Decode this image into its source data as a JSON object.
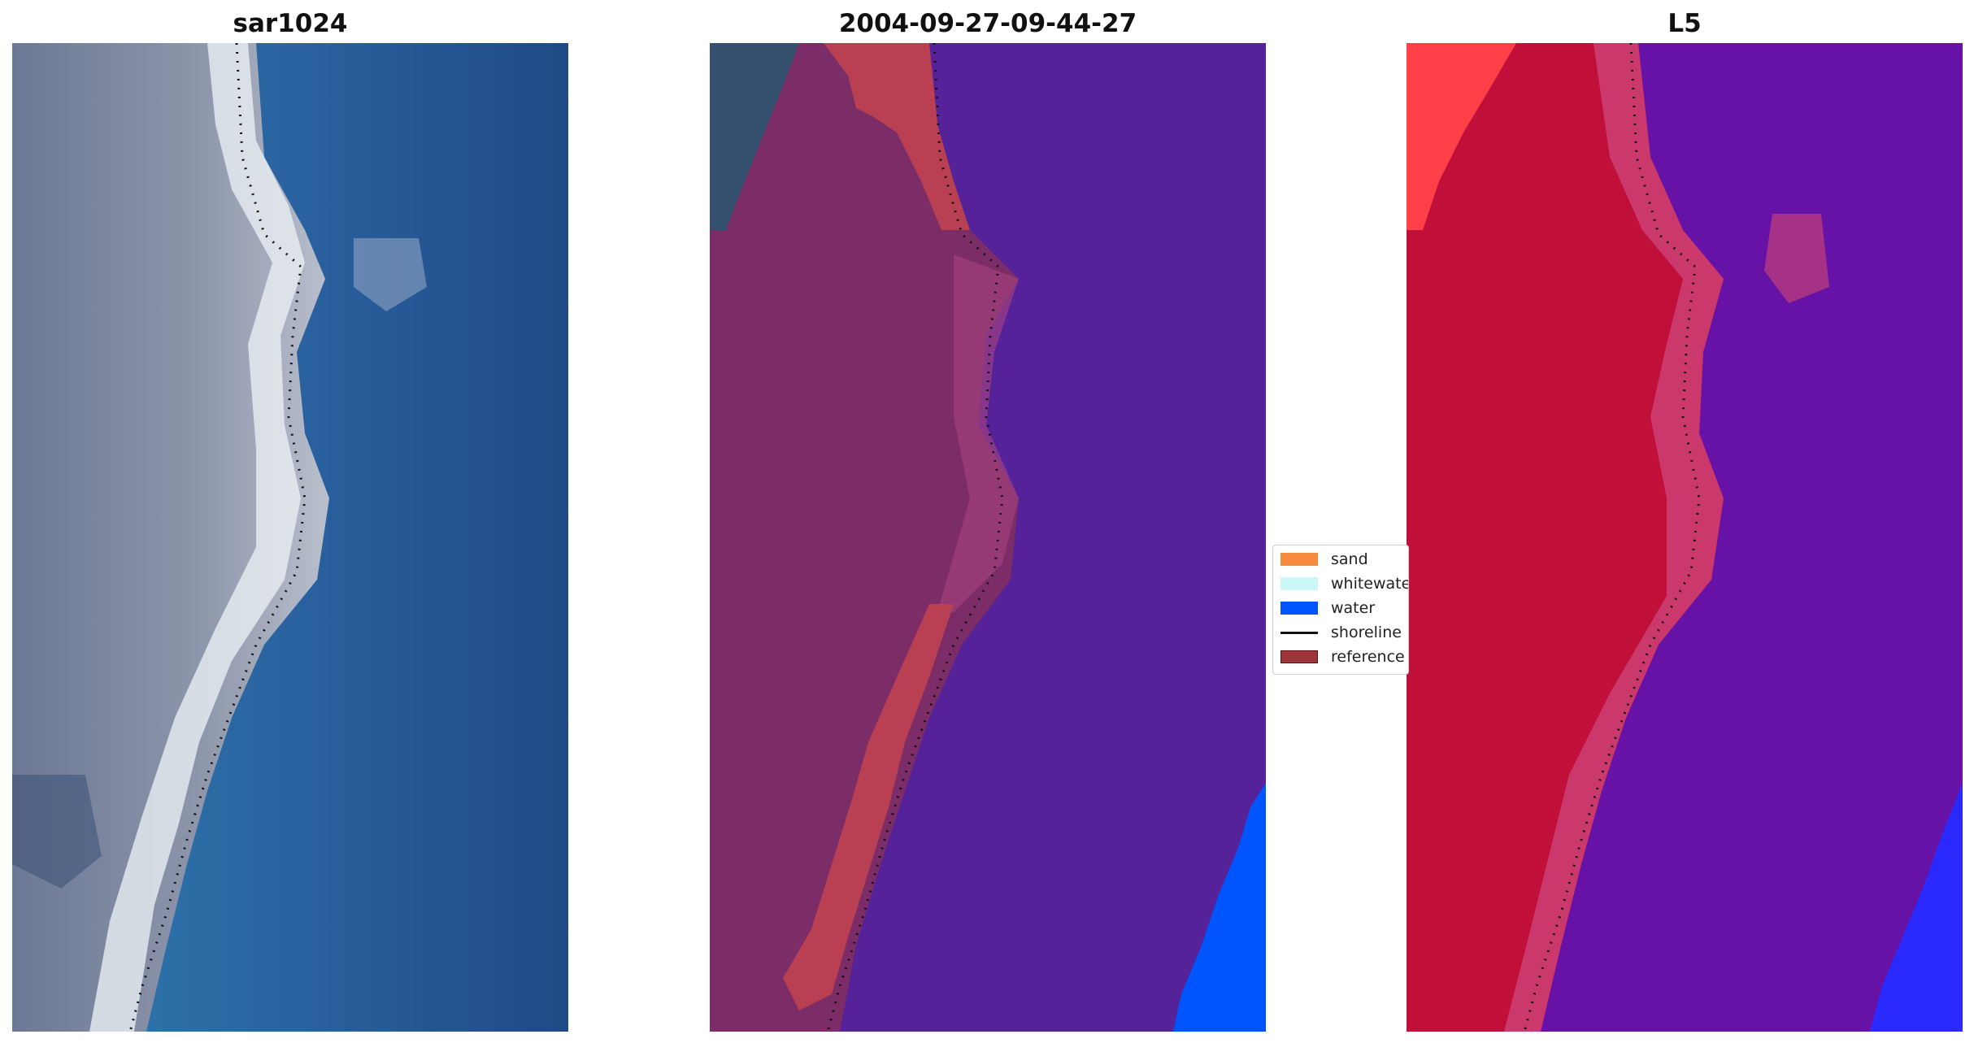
{
  "panels": [
    {
      "title": "sar1024",
      "kind": "rgb"
    },
    {
      "title": "2004-09-27-09-44-27",
      "kind": "classified"
    },
    {
      "title": "L5",
      "kind": "index"
    }
  ],
  "legend": {
    "items": [
      {
        "label": "sand",
        "color": "#f58a3c"
      },
      {
        "label": "whitewater",
        "color": "#ccf7f7"
      },
      {
        "label": "water",
        "color": "#0055ff"
      },
      {
        "label": "shoreline",
        "color": "#111111",
        "style": "line"
      },
      {
        "label": "reference",
        "color": "#a0363d"
      }
    ]
  },
  "colors": {
    "rgb_land": "#8a93a8",
    "rgb_sea": "#2a6aa0",
    "classified_land": "#7c2c66",
    "classified_water": "#55229a",
    "classified_reference": "#b93f52",
    "classified_blue": "#0055ff",
    "index_land": "#c0103a",
    "index_sea": "#6612a6",
    "index_hot": "#ff4048",
    "index_blue": "#2a2aff",
    "shoreline_dots": "#111111"
  }
}
